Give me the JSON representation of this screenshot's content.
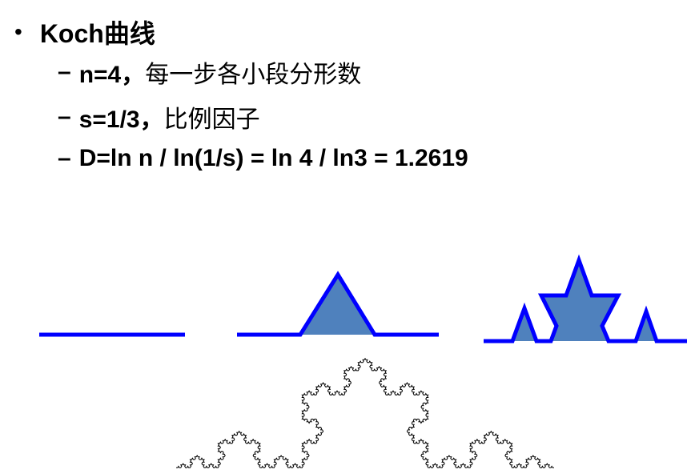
{
  "bullet": {
    "marker": "•",
    "title": "Koch曲线"
  },
  "items": [
    {
      "dash": "–",
      "formula": "n=4，",
      "desc": "每一步各小段分形数"
    },
    {
      "dash": "–",
      "formula": "s=1/3，",
      "desc": "比例因子"
    },
    {
      "dash": "–",
      "formula": "D=ln n / ln(1/s) = ln 4 / ln3 = 1.2619",
      "desc": ""
    }
  ],
  "figure": {
    "stroke_color": "#0000ff",
    "fill_color": "#4f81bd",
    "curve_color": "#000000",
    "stages": [
      "stage-0",
      "stage-1",
      "stage-2",
      "stage-4"
    ]
  }
}
